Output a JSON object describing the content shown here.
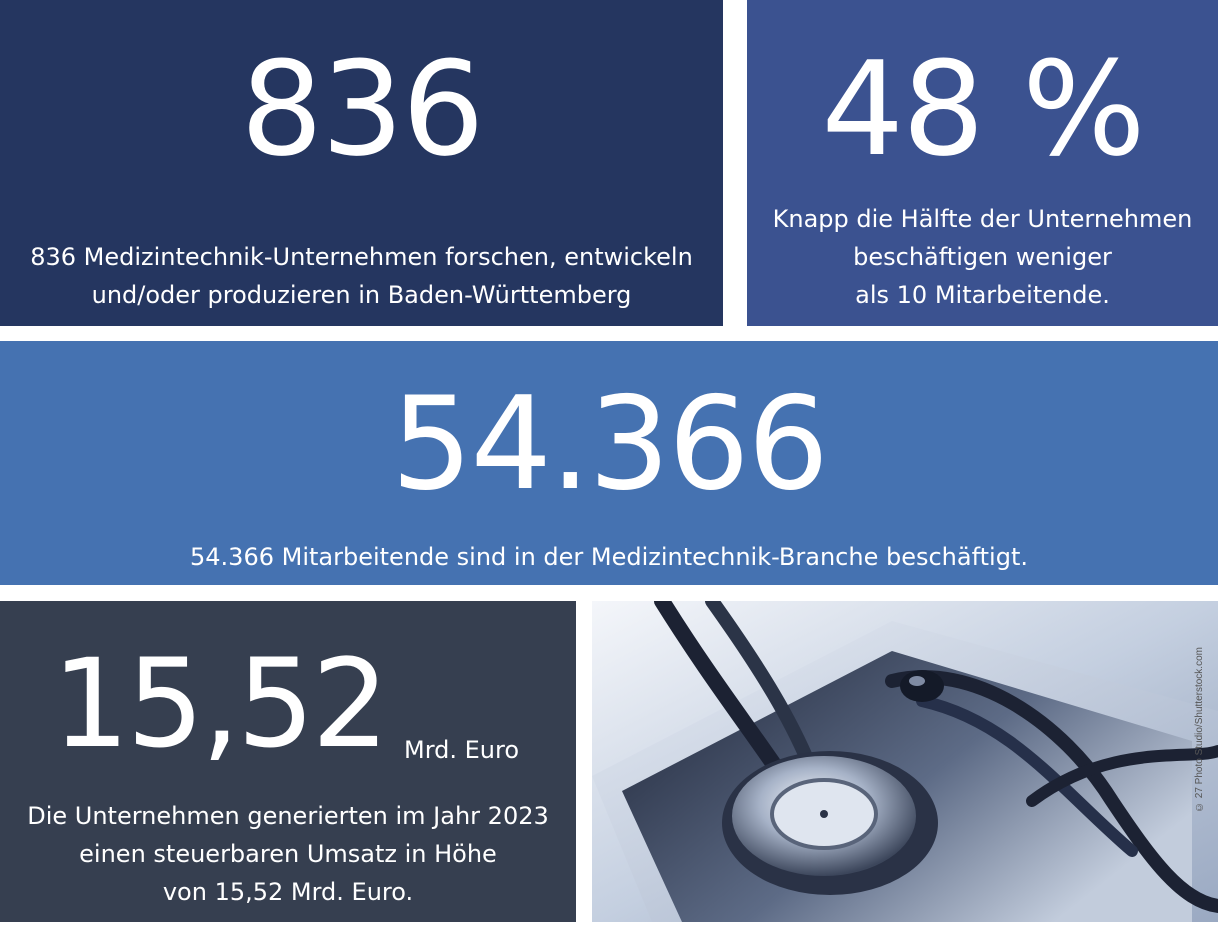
{
  "tiles": {
    "companies": {
      "value": "836",
      "line1": "836 Medizintechnik-Unternehmen forschen, entwickeln",
      "line2": "und/oder produzieren in Baden-Württemberg",
      "color": "#253660"
    },
    "small_companies": {
      "value": "48 %",
      "line1": "Knapp die Hälfte der Unternehmen",
      "line2": "beschäftigen weniger",
      "line3": "als 10 Mitarbeitende.",
      "color": "#3b5290"
    },
    "employees": {
      "value": "54.366",
      "line1": "54.366 Mitarbeitende sind in der Medizintechnik-Branche beschäftigt.",
      "color": "#4572b1"
    },
    "revenue": {
      "value": "15,52",
      "unit": "Mrd. Euro",
      "line1": "Die Unternehmen generierten im Jahr 2023",
      "line2": "einen steuerbaren Umsatz in Höhe",
      "line3": "von 15,52 Mrd. Euro.",
      "color": "#363f50"
    }
  },
  "photo": {
    "subject": "stethoscope-on-tablet",
    "credit": "© 27 Photo Studio/Shutterstock.com"
  }
}
